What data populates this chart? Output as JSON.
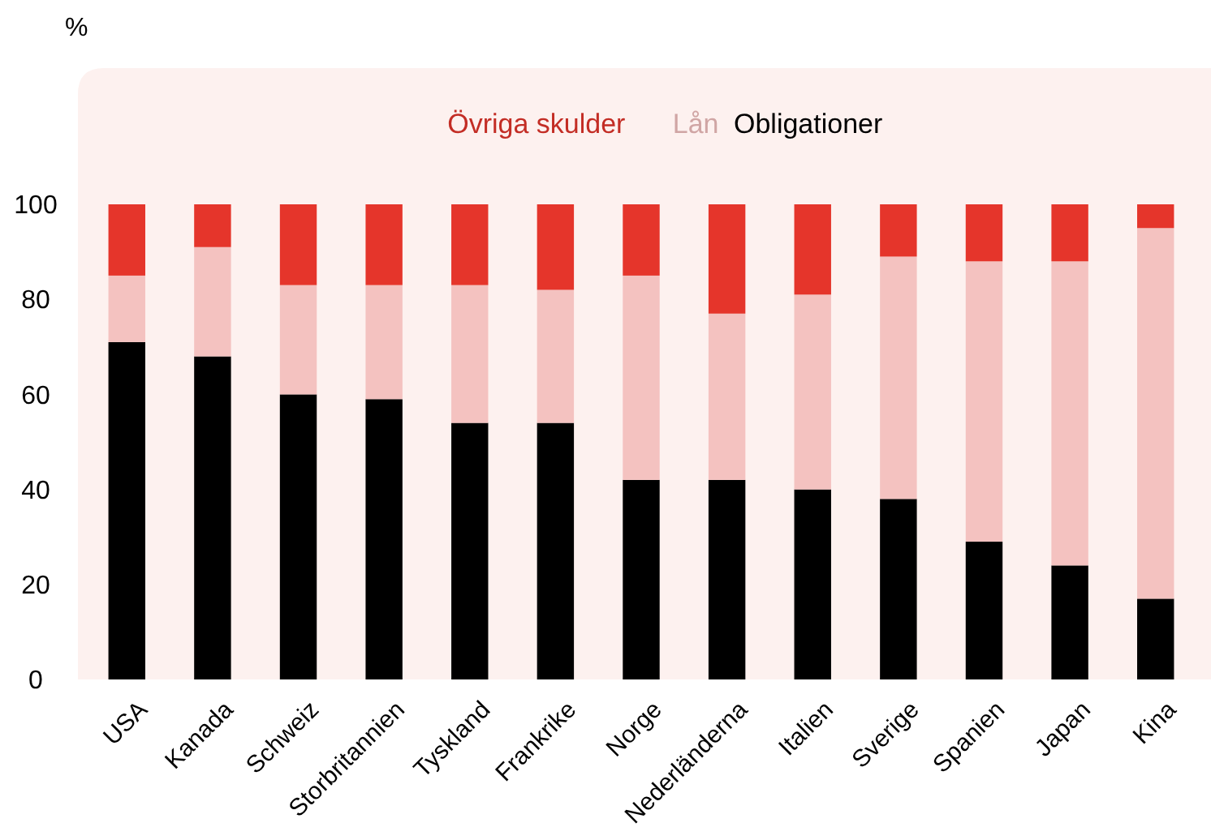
{
  "chart_data": {
    "type": "bar",
    "stacked": true,
    "legend": "top",
    "annotations": [
      "%"
    ],
    "categories": [
      "USA",
      "Kanada",
      "Schweiz",
      "Storbritannien",
      "Tyskland",
      "Frankrike",
      "Norge",
      "Nederländerna",
      "Italien",
      "Sverige",
      "Spanien",
      "Japan",
      "Kina"
    ],
    "series": [
      {
        "name": "Obligationer",
        "color": "#000000",
        "values": [
          71,
          68,
          60,
          59,
          54,
          54,
          42,
          42,
          40,
          38,
          29,
          24,
          17
        ]
      },
      {
        "name": "Lån",
        "color": "#f4c2c0",
        "values": [
          14,
          23,
          23,
          24,
          29,
          28,
          43,
          35,
          41,
          51,
          59,
          64,
          78
        ]
      },
      {
        "name": "Övriga skulder",
        "color": "#e5352b",
        "values": [
          15,
          9,
          17,
          17,
          17,
          18,
          15,
          23,
          19,
          11,
          12,
          12,
          5
        ]
      }
    ],
    "ylim": [
      0,
      100
    ],
    "yticks": [
      0,
      20,
      40,
      60,
      80,
      100
    ],
    "grid": false
  }
}
